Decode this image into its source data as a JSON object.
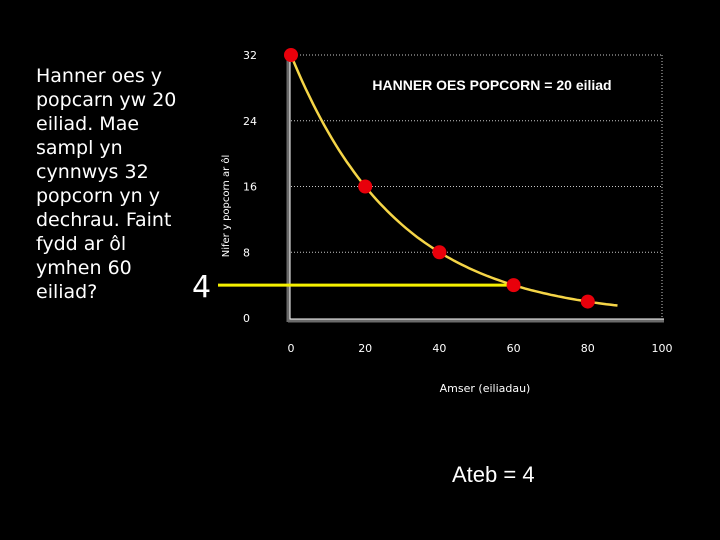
{
  "question_text": "Hanner oes y popcarn yw 20 eiliad. Mae sampl yn cynnwys 32 popcorn yn y dechrau.  Faint fydd ar ôl ymhen 60 eiliad?",
  "answer_marker": "4",
  "answer_text": "Ateb = 4",
  "colors": {
    "background": "#000000",
    "curve": "#f5d547",
    "points": "#e8000b",
    "highlight_line": "#f5f000",
    "grid": "#c8c8c8",
    "text": "#ffffff"
  },
  "chart_data": {
    "type": "line",
    "title": "HANNER OES POPCORN = 20 eiliad",
    "xlabel": "Amser (eiliadau)",
    "ylabel": "Nifer y popcorn ar ôl",
    "xlim": [
      0,
      100
    ],
    "ylim": [
      0,
      32
    ],
    "x_ticks": [
      "0",
      "20",
      "40",
      "60",
      "80",
      "100"
    ],
    "y_ticks": [
      "0",
      "8",
      "16",
      "24",
      "32"
    ],
    "grid": "horizontal dotted",
    "series": [
      {
        "curve": "exponential decay",
        "points": [
          {
            "x": 0,
            "y": 32
          },
          {
            "x": 20,
            "y": 16
          },
          {
            "x": 40,
            "y": 8
          },
          {
            "x": 60,
            "y": 4
          },
          {
            "x": 80,
            "y": 2
          }
        ]
      }
    ],
    "highlight": {
      "y": 4,
      "x_to": 60
    }
  }
}
